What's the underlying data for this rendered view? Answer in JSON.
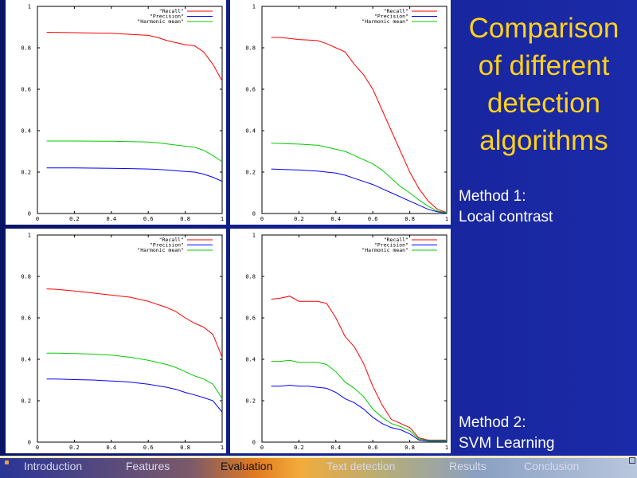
{
  "title": [
    "Comparison",
    "of different",
    "detection",
    "algorithms"
  ],
  "method1": [
    "Method 1:",
    "Local contrast"
  ],
  "method2": [
    "Method 2:",
    "SVM Learning"
  ],
  "nav": [
    {
      "label": "Introduction",
      "active": false
    },
    {
      "label": "Features",
      "active": false
    },
    {
      "label": "Evaluation",
      "active": true
    },
    {
      "label": "Text detection",
      "active": false
    },
    {
      "label": "Results",
      "active": false
    },
    {
      "label": "Conclusion",
      "active": false
    }
  ],
  "colors": {
    "recall": "#ff0000",
    "precision": "#0000ff",
    "harmonic": "#00cc00",
    "title": "#ffd21a"
  },
  "chart_data": [
    {
      "type": "line",
      "x": [
        0.05,
        0.2,
        0.4,
        0.5,
        0.6,
        0.65,
        0.7,
        0.8,
        0.85,
        0.9,
        0.95,
        1.0
      ],
      "series": [
        {
          "name": "\"Recall\"",
          "values": [
            0.875,
            0.873,
            0.87,
            0.865,
            0.86,
            0.85,
            0.835,
            0.815,
            0.81,
            0.78,
            0.72,
            0.64
          ]
        },
        {
          "name": "\"Precision\"",
          "values": [
            0.22,
            0.22,
            0.218,
            0.217,
            0.215,
            0.213,
            0.21,
            0.203,
            0.2,
            0.19,
            0.175,
            0.155
          ]
        },
        {
          "name": "\"Harmonic mean\"",
          "values": [
            0.35,
            0.35,
            0.349,
            0.347,
            0.345,
            0.342,
            0.336,
            0.325,
            0.32,
            0.305,
            0.28,
            0.25
          ]
        }
      ],
      "xticks": [
        "0",
        "0.2",
        "0.4",
        "0.6",
        "0.8",
        "1"
      ],
      "yticks": [
        "0",
        "0.2",
        "0.4",
        "0.6",
        "0.8",
        "1"
      ],
      "xlim": [
        0,
        1
      ],
      "ylim": [
        0,
        1
      ],
      "legend": "top-right"
    },
    {
      "type": "line",
      "x": [
        0.05,
        0.1,
        0.2,
        0.3,
        0.35,
        0.4,
        0.45,
        0.5,
        0.55,
        0.6,
        0.65,
        0.7,
        0.75,
        0.8,
        0.85,
        0.9,
        0.95,
        1.0
      ],
      "series": [
        {
          "name": "\"Recall\"",
          "values": [
            0.85,
            0.85,
            0.84,
            0.835,
            0.82,
            0.8,
            0.78,
            0.72,
            0.67,
            0.6,
            0.5,
            0.4,
            0.3,
            0.2,
            0.12,
            0.06,
            0.02,
            0.005
          ]
        },
        {
          "name": "\"Precision\"",
          "values": [
            0.215,
            0.213,
            0.21,
            0.205,
            0.2,
            0.195,
            0.185,
            0.17,
            0.155,
            0.14,
            0.12,
            0.1,
            0.08,
            0.06,
            0.04,
            0.02,
            0.008,
            0.002
          ]
        },
        {
          "name": "\"Harmonic mean\"",
          "values": [
            0.34,
            0.338,
            0.335,
            0.33,
            0.32,
            0.31,
            0.3,
            0.28,
            0.26,
            0.24,
            0.21,
            0.17,
            0.13,
            0.1,
            0.065,
            0.035,
            0.012,
            0.004
          ]
        }
      ],
      "xticks": [
        "0",
        "0.2",
        "0.4",
        "0.6",
        "0.8",
        "1"
      ],
      "yticks": [
        "0",
        "0.2",
        "0.4",
        "0.6",
        "0.8",
        "1"
      ],
      "xlim": [
        0,
        1
      ],
      "ylim": [
        0,
        1
      ],
      "legend": "top-right"
    },
    {
      "type": "line",
      "x": [
        0.05,
        0.1,
        0.2,
        0.3,
        0.4,
        0.45,
        0.5,
        0.6,
        0.65,
        0.7,
        0.75,
        0.8,
        0.85,
        0.9,
        0.95,
        1.0
      ],
      "series": [
        {
          "name": "\"Recall\"",
          "values": [
            0.74,
            0.738,
            0.73,
            0.72,
            0.71,
            0.705,
            0.7,
            0.68,
            0.665,
            0.65,
            0.63,
            0.6,
            0.575,
            0.555,
            0.52,
            0.41
          ]
        },
        {
          "name": "\"Precision\"",
          "values": [
            0.305,
            0.305,
            0.302,
            0.3,
            0.295,
            0.293,
            0.29,
            0.28,
            0.272,
            0.265,
            0.255,
            0.24,
            0.228,
            0.215,
            0.2,
            0.145
          ]
        },
        {
          "name": "\"Harmonic mean\"",
          "values": [
            0.43,
            0.43,
            0.428,
            0.425,
            0.42,
            0.415,
            0.41,
            0.395,
            0.385,
            0.375,
            0.36,
            0.34,
            0.32,
            0.305,
            0.28,
            0.21
          ]
        }
      ],
      "xticks": [
        "0",
        "0.2",
        "0.4",
        "0.6",
        "0.8",
        "1"
      ],
      "yticks": [
        "0",
        "0.2",
        "0.4",
        "0.6",
        "0.8",
        "1"
      ],
      "xlim": [
        0,
        1
      ],
      "ylim": [
        0,
        1
      ],
      "legend": "top-right"
    },
    {
      "type": "line",
      "x": [
        0.05,
        0.1,
        0.15,
        0.2,
        0.25,
        0.3,
        0.35,
        0.4,
        0.45,
        0.5,
        0.55,
        0.6,
        0.65,
        0.7,
        0.75,
        0.8,
        0.85,
        0.9,
        0.95,
        1.0
      ],
      "series": [
        {
          "name": "\"Recall\"",
          "values": [
            0.69,
            0.695,
            0.705,
            0.68,
            0.68,
            0.68,
            0.67,
            0.6,
            0.51,
            0.46,
            0.38,
            0.27,
            0.18,
            0.11,
            0.09,
            0.07,
            0.02,
            0.01,
            0.01,
            0.01
          ]
        },
        {
          "name": "\"Precision\"",
          "values": [
            0.27,
            0.27,
            0.275,
            0.27,
            0.27,
            0.265,
            0.26,
            0.24,
            0.21,
            0.19,
            0.16,
            0.12,
            0.09,
            0.07,
            0.06,
            0.04,
            0.01,
            0.005,
            0.005,
            0.005
          ]
        },
        {
          "name": "\"Harmonic mean\"",
          "values": [
            0.39,
            0.39,
            0.395,
            0.385,
            0.385,
            0.385,
            0.375,
            0.34,
            0.29,
            0.26,
            0.22,
            0.16,
            0.12,
            0.09,
            0.075,
            0.055,
            0.015,
            0.008,
            0.008,
            0.008
          ]
        }
      ],
      "xticks": [
        "0",
        "0.2",
        "0.4",
        "0.6",
        "0.8",
        "1"
      ],
      "yticks": [
        "0",
        "0.2",
        "0.4",
        "0.6",
        "0.8",
        "1"
      ],
      "xlim": [
        0,
        1
      ],
      "ylim": [
        0,
        1
      ],
      "legend": "top-right"
    }
  ]
}
